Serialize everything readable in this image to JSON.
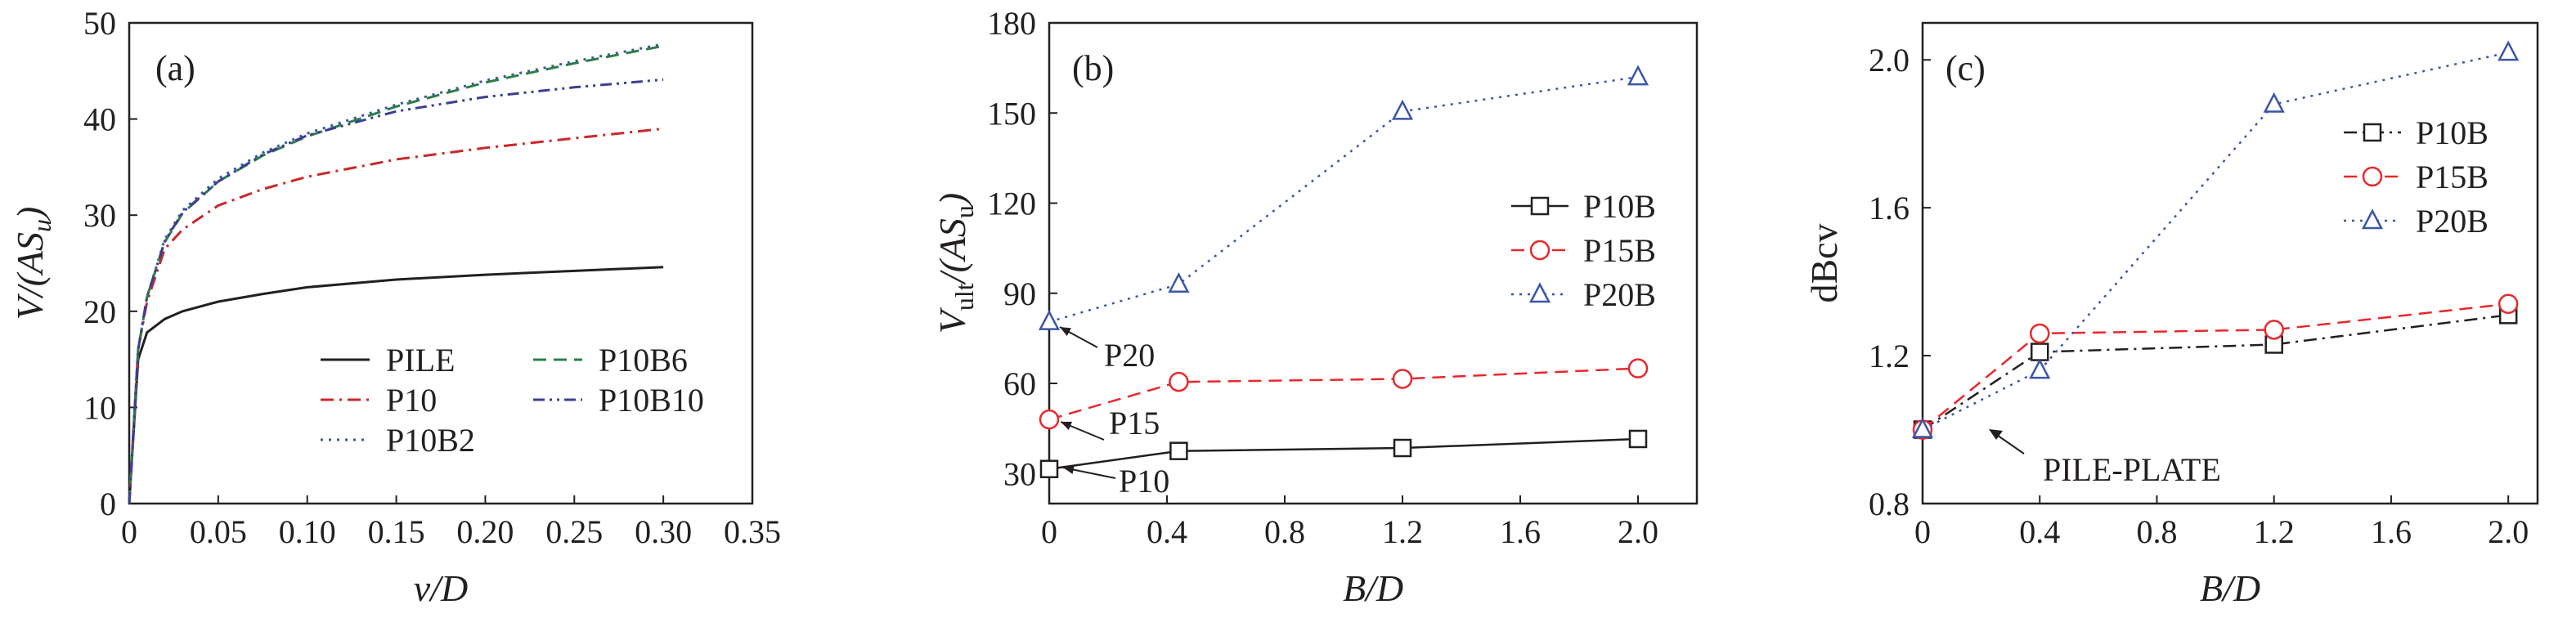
{
  "chart_data": [
    {
      "type": "line",
      "panel_label": "(a)",
      "xlabel": "v/D",
      "ylabel": "V/(AS_u)",
      "xlim": [
        0,
        0.35
      ],
      "ylim": [
        0,
        50
      ],
      "xticks": [
        "0",
        "0.05",
        "0.10",
        "0.15",
        "0.20",
        "0.25",
        "0.30",
        "0.35"
      ],
      "yticks": [
        "0",
        "10",
        "20",
        "30",
        "40",
        "50"
      ],
      "legend_position": "bottom-right",
      "series": [
        {
          "name": "PILE",
          "color": "#231f20",
          "dash": "solid",
          "x": [
            0,
            0.005,
            0.01,
            0.02,
            0.03,
            0.05,
            0.075,
            0.1,
            0.15,
            0.2,
            0.25,
            0.3
          ],
          "y": [
            0,
            15,
            17.8,
            19.2,
            20,
            21,
            21.8,
            22.5,
            23.3,
            23.8,
            24.2,
            24.6
          ]
        },
        {
          "name": "P10",
          "color": "#c8282c",
          "dash": "dashdot",
          "x": [
            0,
            0.005,
            0.01,
            0.02,
            0.03,
            0.05,
            0.075,
            0.1,
            0.15,
            0.2,
            0.25,
            0.3
          ],
          "y": [
            0,
            16,
            21,
            26.5,
            28.5,
            31,
            32.7,
            34,
            35.8,
            37,
            38,
            39
          ]
        },
        {
          "name": "P10B2",
          "color": "#3b55a8",
          "dash": "dot",
          "x": [
            0,
            0.005,
            0.01,
            0.02,
            0.03,
            0.05,
            0.075,
            0.1,
            0.15,
            0.2,
            0.25,
            0.3
          ],
          "y": [
            0,
            16,
            21.5,
            27.5,
            30.5,
            33.8,
            36.5,
            38.5,
            41.5,
            44,
            46,
            47.8
          ]
        },
        {
          "name": "P10B6",
          "color": "#2e7d4a",
          "dash": "dash",
          "x": [
            0,
            0.005,
            0.01,
            0.02,
            0.03,
            0.05,
            0.075,
            0.1,
            0.15,
            0.2,
            0.25,
            0.3
          ],
          "y": [
            0,
            16,
            21.5,
            27.2,
            30.2,
            33.5,
            36.2,
            38.2,
            41.3,
            43.8,
            45.8,
            47.6
          ]
        },
        {
          "name": "P10B10",
          "color": "#3b3f8f",
          "dash": "dashdotdot",
          "x": [
            0,
            0.005,
            0.01,
            0.02,
            0.03,
            0.05,
            0.075,
            0.1,
            0.15,
            0.2,
            0.25,
            0.3
          ],
          "y": [
            0,
            16,
            21.5,
            27.3,
            30.3,
            33.5,
            36.3,
            38.3,
            40.8,
            42.3,
            43.3,
            44.1
          ]
        }
      ]
    },
    {
      "type": "line",
      "panel_label": "(b)",
      "xlabel": "B/D",
      "ylabel": "V_ult/(AS_u)",
      "xlim": [
        0,
        2.2
      ],
      "ylim": [
        20,
        180
      ],
      "xticks": [
        0,
        0.4,
        0.8,
        1.2,
        1.6,
        2.0
      ],
      "xtick_labels": [
        "0",
        "0.4",
        "0.8",
        "1.2",
        "1.6",
        "2.0"
      ],
      "yticks": [
        30,
        60,
        90,
        120,
        150,
        180
      ],
      "ytick_labels": [
        "30",
        "60",
        "90",
        "120",
        "150",
        "180"
      ],
      "legend_position": "center-right",
      "series": [
        {
          "name": "P10B",
          "color": "#231f20",
          "dash": "solid",
          "marker": "square",
          "x": [
            0,
            0.44,
            1.2,
            2.0
          ],
          "y": [
            31.5,
            37.5,
            38.5,
            41.5
          ]
        },
        {
          "name": "P15B",
          "color": "#e8282c",
          "dash": "dash",
          "marker": "circle",
          "x": [
            0,
            0.44,
            1.2,
            2.0
          ],
          "y": [
            48,
            60.5,
            61.5,
            65
          ]
        },
        {
          "name": "P20B",
          "color": "#3b55a8",
          "dash": "dot",
          "marker": "triangle",
          "x": [
            0,
            0.44,
            1.2,
            2.0
          ],
          "y": [
            80.5,
            93,
            150.5,
            162
          ]
        }
      ],
      "annotations": [
        "P20",
        "P15",
        "P10"
      ]
    },
    {
      "type": "line",
      "panel_label": "(c)",
      "xlabel": "B/D",
      "ylabel": "dBcv",
      "xlim": [
        0,
        2.1
      ],
      "ylim": [
        0.8,
        2.1
      ],
      "xticks": [
        0,
        0.4,
        0.8,
        1.2,
        1.6,
        2.0
      ],
      "xtick_labels": [
        "0",
        "0.4",
        "0.8",
        "1.2",
        "1.6",
        "2.0"
      ],
      "yticks": [
        0.8,
        1.2,
        1.6,
        2.0
      ],
      "ytick_labels": [
        "0.8",
        "1.2",
        "1.6",
        "2.0"
      ],
      "legend_position": "top-right",
      "series": [
        {
          "name": "P10B",
          "color": "#231f20",
          "dash": "dashdot",
          "marker": "square",
          "x": [
            0,
            0.4,
            1.2,
            2.0
          ],
          "y": [
            1.0,
            1.21,
            1.23,
            1.31
          ]
        },
        {
          "name": "P15B",
          "color": "#e8282c",
          "dash": "dash",
          "marker": "circle",
          "x": [
            0,
            0.4,
            1.2,
            2.0
          ],
          "y": [
            1.0,
            1.26,
            1.27,
            1.34
          ]
        },
        {
          "name": "P20B",
          "color": "#3b55a8",
          "dash": "dot",
          "marker": "triangle",
          "x": [
            0,
            0.4,
            1.2,
            2.0
          ],
          "y": [
            1.0,
            1.16,
            1.88,
            2.02
          ]
        }
      ],
      "annotations": [
        "PILE-PLATE"
      ]
    }
  ]
}
